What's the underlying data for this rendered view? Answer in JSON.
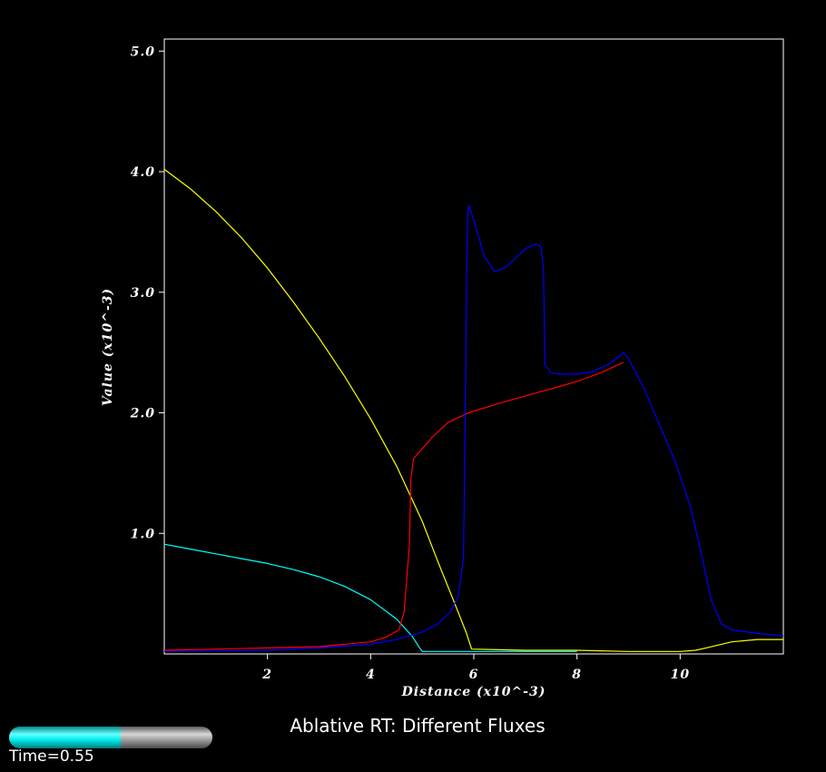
{
  "chart_data": {
    "type": "line",
    "title": "Ablative RT: Different Fluxes",
    "xlabel": "Distance (x10^-3)",
    "ylabel": "Value (x10^-3)",
    "xlim": [
      0.0,
      12.0
    ],
    "ylim": [
      0.0,
      5.1
    ],
    "x_ticks": [
      2,
      4,
      6,
      8,
      10
    ],
    "x_tick_labels": [
      "2",
      "4",
      "6",
      "8",
      "10"
    ],
    "y_ticks": [
      1.0,
      2.0,
      3.0,
      4.0,
      5.0
    ],
    "y_tick_labels": [
      "1.0",
      "2.0",
      "3.0",
      "4.0",
      "5.0"
    ],
    "grid": false,
    "legend": "none",
    "background": "#000000",
    "axis_color": "#ffffff",
    "series": [
      {
        "color": "#ffff00",
        "x": [
          0.0,
          0.5,
          1.0,
          1.5,
          2.0,
          2.5,
          3.0,
          3.5,
          4.0,
          4.5,
          5.0,
          5.3,
          5.6,
          5.85,
          5.95,
          5.96,
          6.5,
          7.0,
          8.0,
          9.0,
          10.0,
          10.3,
          10.5,
          11.0,
          11.5,
          12.0
        ],
        "y": [
          4.02,
          3.86,
          3.67,
          3.45,
          3.2,
          2.92,
          2.62,
          2.3,
          1.95,
          1.56,
          1.1,
          0.77,
          0.45,
          0.18,
          0.05,
          0.04,
          0.035,
          0.03,
          0.03,
          0.02,
          0.02,
          0.03,
          0.05,
          0.1,
          0.12,
          0.12
        ]
      },
      {
        "color": "#00ffff",
        "x": [
          0.0,
          0.5,
          1.0,
          1.5,
          2.0,
          2.5,
          3.0,
          3.5,
          4.0,
          4.5,
          4.8,
          4.95,
          5.0,
          5.5,
          6.0,
          7.0,
          8.0
        ],
        "y": [
          0.91,
          0.87,
          0.83,
          0.79,
          0.75,
          0.7,
          0.64,
          0.56,
          0.45,
          0.29,
          0.15,
          0.05,
          0.02,
          0.02,
          0.02,
          0.02,
          0.02
        ]
      },
      {
        "color": "#ff0000",
        "x": [
          0.0,
          1.0,
          2.0,
          3.0,
          3.5,
          4.0,
          4.3,
          4.55,
          4.65,
          4.75,
          4.78,
          4.83,
          5.2,
          5.5,
          5.9,
          6.5,
          7.0,
          7.5,
          8.0,
          8.5,
          8.9
        ],
        "y": [
          0.03,
          0.04,
          0.05,
          0.06,
          0.08,
          0.1,
          0.14,
          0.2,
          0.35,
          0.9,
          1.45,
          1.62,
          1.8,
          1.92,
          2.0,
          2.08,
          2.14,
          2.2,
          2.26,
          2.34,
          2.42
        ]
      },
      {
        "color": "#0000ff",
        "x": [
          0.0,
          2.0,
          3.0,
          4.0,
          4.5,
          5.0,
          5.3,
          5.55,
          5.7,
          5.8,
          5.83,
          5.86,
          5.88,
          5.9,
          6.0,
          6.2,
          6.4,
          6.6,
          6.8,
          7.0,
          7.2,
          7.3,
          7.35,
          7.38,
          7.5,
          7.7,
          8.0,
          8.3,
          8.6,
          8.8,
          8.9,
          9.0,
          9.3,
          9.6,
          9.9,
          10.2,
          10.4,
          10.6,
          10.8,
          11.0,
          11.5,
          12.0
        ],
        "y": [
          0.02,
          0.03,
          0.05,
          0.08,
          0.12,
          0.18,
          0.25,
          0.35,
          0.48,
          0.8,
          1.8,
          3.1,
          3.6,
          3.72,
          3.6,
          3.3,
          3.17,
          3.2,
          3.28,
          3.36,
          3.4,
          3.38,
          3.2,
          2.4,
          2.33,
          2.32,
          2.32,
          2.34,
          2.4,
          2.46,
          2.5,
          2.45,
          2.2,
          1.9,
          1.6,
          1.22,
          0.85,
          0.45,
          0.25,
          0.2,
          0.17,
          0.15
        ]
      }
    ]
  },
  "time_bar": {
    "label": "Time=0.55",
    "progress": 0.55,
    "fill_color": "#00e5e5",
    "track_color": "#9a9a9a"
  }
}
